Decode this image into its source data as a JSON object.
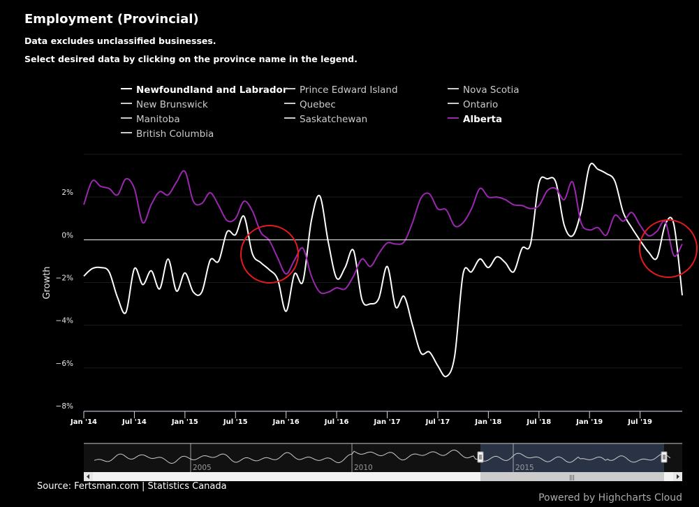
{
  "header": {
    "title": "Employment (Provincial)",
    "subtitle_1": "Data excludes unclassified businesses.",
    "subtitle_2": "Select desired data by clicking on the province name in the legend."
  },
  "legend": {
    "items": [
      {
        "label": "Newfoundland and Labrador",
        "visible": true,
        "color": "#ffffff"
      },
      {
        "label": "Prince Edward Island",
        "visible": false,
        "color": "#cccccc"
      },
      {
        "label": "Nova Scotia",
        "visible": false,
        "color": "#cccccc"
      },
      {
        "label": "New Brunswick",
        "visible": false,
        "color": "#cccccc"
      },
      {
        "label": "Quebec",
        "visible": false,
        "color": "#cccccc"
      },
      {
        "label": "Ontario",
        "visible": false,
        "color": "#cccccc"
      },
      {
        "label": "Manitoba",
        "visible": false,
        "color": "#cccccc"
      },
      {
        "label": "Saskatchewan",
        "visible": false,
        "color": "#cccccc"
      },
      {
        "label": "Alberta",
        "visible": true,
        "color": "#9c27b0"
      },
      {
        "label": "British Columbia",
        "visible": false,
        "color": "#cccccc"
      }
    ]
  },
  "chart_data": {
    "type": "line",
    "title": "Employment (Provincial)",
    "ylabel": "Growth",
    "xlabel": "",
    "x_start": "Jan 2014",
    "x_end": "Dec 2019",
    "x_frequency": "monthly",
    "ylim": [
      -8,
      4
    ],
    "y_ticks": [
      "2%",
      "0%",
      "−2%",
      "−4%",
      "−6%",
      "−8%"
    ],
    "y_tick_values": [
      2,
      0,
      -2,
      -4,
      -6,
      -8
    ],
    "x_ticks": [
      "Jan '14",
      "Jul '14",
      "Jan '15",
      "Jul '15",
      "Jan '16",
      "Jul '16",
      "Jan '17",
      "Jul '17",
      "Jan '18",
      "Jul '18",
      "Jan '19",
      "Jul '19"
    ],
    "grid": true,
    "legend_position": "top",
    "series": [
      {
        "name": "Newfoundland and Labrador",
        "color": "#ffffff",
        "values": [
          -1.7,
          -1.35,
          -1.3,
          -1.5,
          -2.7,
          -3.4,
          -1.35,
          -2.1,
          -1.45,
          -2.3,
          -0.9,
          -2.4,
          -1.55,
          -2.45,
          -2.45,
          -0.95,
          -1.0,
          0.37,
          0.24,
          1.1,
          -0.65,
          -1.07,
          -1.4,
          -1.85,
          -3.35,
          -1.6,
          -1.95,
          0.9,
          2.05,
          -0.1,
          -1.8,
          -1.3,
          -0.5,
          -2.8,
          -3.0,
          -2.75,
          -1.25,
          -3.15,
          -2.65,
          -4.0,
          -5.3,
          -5.25,
          -5.9,
          -6.4,
          -5.45,
          -1.6,
          -1.5,
          -0.9,
          -1.3,
          -0.8,
          -1.07,
          -1.5,
          -0.4,
          -0.2,
          2.65,
          2.85,
          2.7,
          0.68,
          0.19,
          1.33,
          3.45,
          3.3,
          3.1,
          2.75,
          1.28,
          0.57,
          -0.03,
          -0.58,
          -0.85,
          0.73,
          0.73,
          -2.6
        ]
      },
      {
        "name": "Alberta",
        "color": "#9c27b0",
        "values": [
          1.64,
          2.75,
          2.5,
          2.4,
          2.1,
          2.85,
          2.4,
          0.8,
          1.65,
          2.25,
          2.1,
          2.7,
          3.2,
          1.8,
          1.7,
          2.2,
          1.6,
          0.9,
          1.0,
          1.8,
          1.35,
          0.35,
          -0.03,
          -0.85,
          -1.6,
          -0.95,
          -0.4,
          -1.7,
          -2.45,
          -2.45,
          -2.25,
          -2.3,
          -1.7,
          -0.9,
          -1.25,
          -0.65,
          -0.15,
          -0.2,
          -0.1,
          0.8,
          1.95,
          2.15,
          1.45,
          1.4,
          0.65,
          0.8,
          1.45,
          2.4,
          2.0,
          2.0,
          1.88,
          1.64,
          1.6,
          1.46,
          1.6,
          2.3,
          2.4,
          1.88,
          2.7,
          0.8,
          0.46,
          0.57,
          0.22,
          1.14,
          0.87,
          1.28,
          0.68,
          0.19,
          0.4,
          0.84,
          -0.74,
          -0.2
        ]
      }
    ],
    "annotations": [
      {
        "type": "circle",
        "color": "#e41a1c",
        "at": "Nov 2015"
      },
      {
        "type": "circle",
        "color": "#e41a1c",
        "at": "Dec 2019"
      }
    ],
    "navigator": {
      "labels": [
        "2005",
        "2010",
        "2015"
      ],
      "selected_range": [
        "Jan 2014",
        "Dec 2019"
      ]
    }
  },
  "footer": {
    "source": "Source: Fertsman.com | Statistics Canada",
    "credits": "Powered by Highcharts Cloud"
  }
}
